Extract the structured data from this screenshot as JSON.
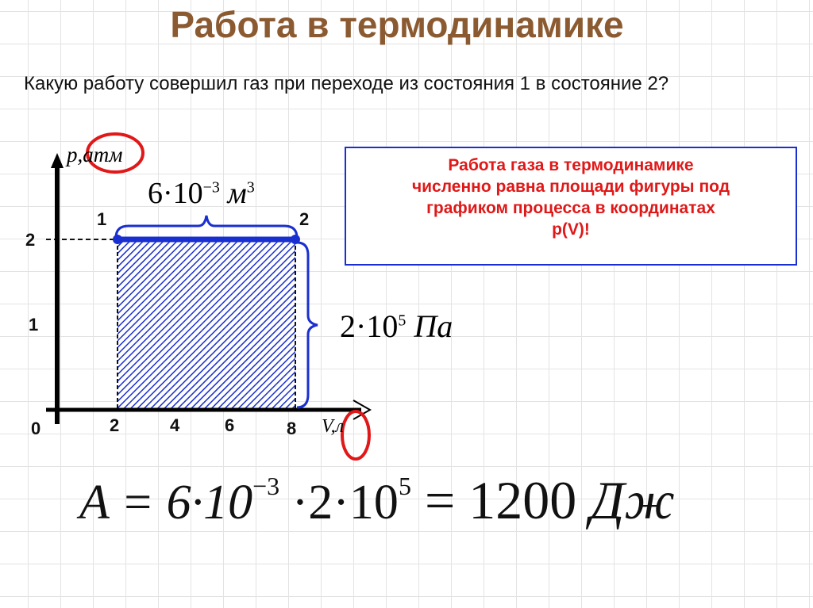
{
  "title": "Работа в термодинамике",
  "question": "Какую работу совершил газ при переходе из состояния  1 в состояние 2?",
  "info_box": {
    "lines": [
      "Работа газа в термодинамике",
      "численно равна площади фигуры под",
      "графиком процесса в координатах",
      "p(V)!"
    ],
    "text_color": "#e01818",
    "border_color": "#1a2fd0"
  },
  "graph": {
    "y_axis_label": "p,атм",
    "x_axis_label": "V,л",
    "y_ticks": [
      "2",
      "1"
    ],
    "x_ticks": [
      "2",
      "4",
      "6",
      "8"
    ],
    "origin_label": "0",
    "state_1_label": "1",
    "state_2_label": "2",
    "process": {
      "p": 2,
      "V_start": 2,
      "V_end": 8
    },
    "width_annotation": {
      "base": "6·10",
      "exp": "−3",
      "unit": " м",
      "unit_exp": "3"
    },
    "height_annotation": {
      "base": "2·10",
      "exp": "5",
      "unit": " Па"
    },
    "fill_color": "#1a2fd0",
    "highlight_color": "#e01818"
  },
  "formula": {
    "lhs": "A = 6·10",
    "exp1": "−3",
    "mid": " ·2·10",
    "exp2": "5",
    "result": "  = 1200",
    "unit": " Дж"
  }
}
